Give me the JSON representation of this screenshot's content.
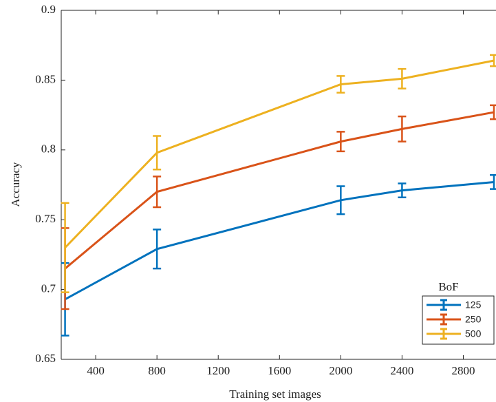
{
  "chart_data": {
    "type": "line",
    "x_label": "Training  set images",
    "y_label": "Accuracy",
    "x": [
      200,
      800,
      2000,
      2400,
      3000
    ],
    "series": [
      {
        "name": "125",
        "color": "#0072BD",
        "values": [
          0.693,
          0.729,
          0.764,
          0.771,
          0.777
        ],
        "errors": [
          0.026,
          0.014,
          0.01,
          0.005,
          0.005
        ]
      },
      {
        "name": "250",
        "color": "#D95319",
        "values": [
          0.715,
          0.77,
          0.806,
          0.815,
          0.827
        ],
        "errors": [
          0.029,
          0.011,
          0.007,
          0.009,
          0.005
        ]
      },
      {
        "name": "500",
        "color": "#EDB120",
        "values": [
          0.73,
          0.798,
          0.847,
          0.851,
          0.864
        ],
        "errors": [
          0.032,
          0.012,
          0.006,
          0.007,
          0.004
        ]
      }
    ],
    "legend_title": "BoF",
    "legend": "lower right",
    "xlim": [
      175,
      3000
    ],
    "xticks": [
      400,
      800,
      1200,
      1600,
      2000,
      2400,
      2800
    ],
    "ylim": [
      0.65,
      0.9
    ],
    "yticks": [
      0.65,
      0.7,
      0.75,
      0.8,
      0.85,
      0.9
    ]
  }
}
